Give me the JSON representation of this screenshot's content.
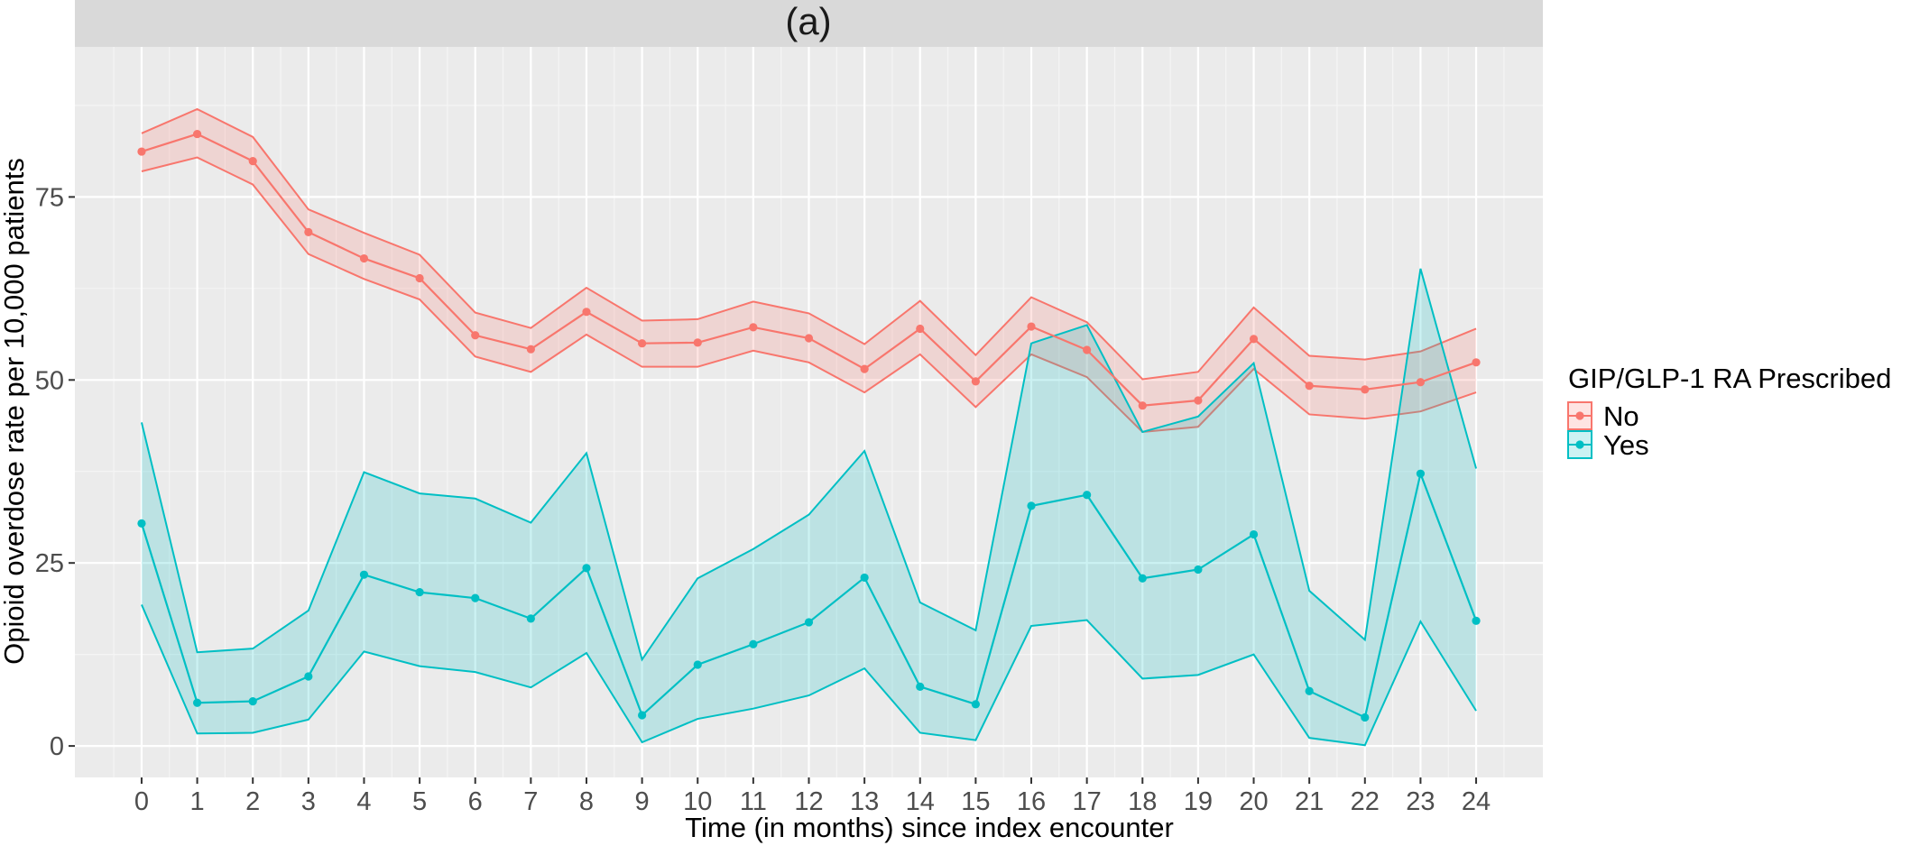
{
  "chart_data": {
    "type": "line",
    "title": "(a)",
    "xlabel": "Time (in months) since index encounter",
    "ylabel": "Opioid overdose rate per 10,000 patients",
    "x": [
      0,
      1,
      2,
      3,
      4,
      5,
      6,
      7,
      8,
      9,
      10,
      11,
      12,
      13,
      14,
      15,
      16,
      17,
      18,
      19,
      20,
      21,
      22,
      23,
      24
    ],
    "x_ticks": [
      "0",
      "1",
      "2",
      "3",
      "4",
      "5",
      "6",
      "7",
      "8",
      "9",
      "10",
      "11",
      "12",
      "13",
      "14",
      "15",
      "16",
      "17",
      "18",
      "19",
      "20",
      "21",
      "22",
      "23",
      "24"
    ],
    "y_ticks": [
      "0",
      "25",
      "50",
      "75"
    ],
    "xlim": [
      -1.2,
      25.2
    ],
    "ylim": [
      -4.3,
      95.5
    ],
    "grid": true,
    "legend_title": "GIP/GLP-1 RA Prescribed",
    "legend_position": "right",
    "series": [
      {
        "name": "No",
        "color": "#f8766d",
        "values": [
          81.2,
          83.6,
          79.9,
          70.2,
          66.6,
          63.9,
          56.1,
          54.2,
          59.3,
          55.0,
          55.1,
          57.2,
          55.7,
          51.5,
          57.0,
          49.8,
          57.3,
          54.1,
          46.5,
          47.2,
          55.6,
          49.2,
          48.7,
          49.7,
          52.4
        ],
        "lower": [
          78.5,
          80.4,
          76.7,
          67.2,
          63.8,
          61.0,
          53.2,
          51.1,
          56.2,
          51.8,
          51.8,
          54.0,
          52.4,
          48.3,
          53.5,
          46.3,
          53.5,
          50.4,
          42.9,
          43.6,
          51.5,
          45.3,
          44.7,
          45.7,
          48.3
        ],
        "upper": [
          83.7,
          87.0,
          83.2,
          73.3,
          70.1,
          67.1,
          59.2,
          57.1,
          62.6,
          58.1,
          58.3,
          60.7,
          59.1,
          54.9,
          60.8,
          53.4,
          61.3,
          57.9,
          50.1,
          51.1,
          59.9,
          53.3,
          52.8,
          53.9,
          57.0
        ]
      },
      {
        "name": "Yes",
        "color": "#00bfc4",
        "values": [
          30.4,
          5.9,
          6.1,
          9.5,
          23.4,
          21.0,
          20.2,
          17.4,
          24.3,
          4.2,
          11.1,
          13.9,
          16.9,
          23.0,
          8.1,
          5.7,
          32.8,
          34.3,
          22.9,
          24.1,
          28.9,
          7.5,
          3.9,
          37.2,
          17.1
        ],
        "lower": [
          19.3,
          1.7,
          1.8,
          3.6,
          12.9,
          10.9,
          10.1,
          8.0,
          12.7,
          0.5,
          3.7,
          5.1,
          6.9,
          10.6,
          1.8,
          0.8,
          16.4,
          17.2,
          9.2,
          9.7,
          12.5,
          1.1,
          0.1,
          17.0,
          4.8
        ],
        "upper": [
          44.2,
          12.8,
          13.3,
          18.5,
          37.4,
          34.5,
          33.8,
          30.5,
          40.0,
          11.8,
          22.9,
          26.9,
          31.6,
          40.3,
          19.6,
          15.8,
          55.0,
          57.5,
          42.9,
          45.0,
          52.3,
          21.2,
          14.5,
          65.2,
          37.9
        ]
      }
    ]
  }
}
